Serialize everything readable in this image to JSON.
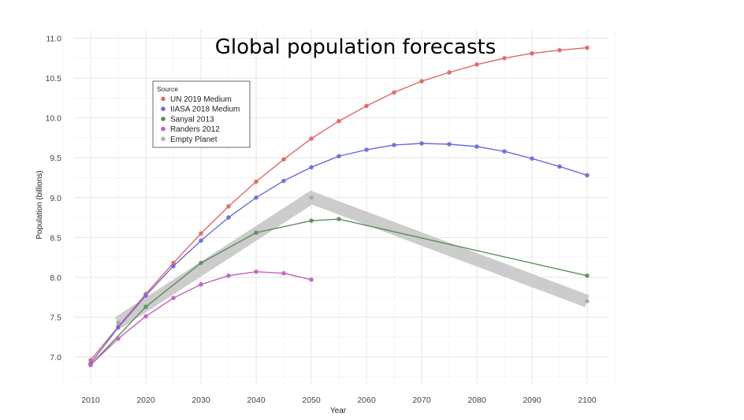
{
  "chart_data": {
    "type": "line",
    "title": "Global population forecasts",
    "xlabel": "Year",
    "ylabel": "Population (billions)",
    "xlim": [
      2010,
      2100
    ],
    "ylim": [
      6.5,
      11.1
    ],
    "x_ticks": [
      2010,
      2020,
      2030,
      2040,
      2050,
      2060,
      2070,
      2080,
      2090,
      2100
    ],
    "y_ticks": [
      7.0,
      7.5,
      8.0,
      8.5,
      9.0,
      9.5,
      10.0,
      10.5,
      11.0
    ],
    "grid": true,
    "legend": {
      "title": "Source",
      "position": "top-left"
    },
    "series": [
      {
        "name": "UN 2019 Medium",
        "color": "#e06666",
        "x": [
          2010,
          2015,
          2020,
          2025,
          2030,
          2035,
          2040,
          2045,
          2050,
          2055,
          2060,
          2065,
          2070,
          2075,
          2080,
          2085,
          2090,
          2095,
          2100
        ],
        "y": [
          6.96,
          7.38,
          7.79,
          8.18,
          8.55,
          8.89,
          9.2,
          9.48,
          9.74,
          9.96,
          10.15,
          10.32,
          10.46,
          10.57,
          10.67,
          10.75,
          10.81,
          10.85,
          10.88
        ]
      },
      {
        "name": "IIASA 2018 Medium",
        "color": "#6c6cd9",
        "x": [
          2010,
          2015,
          2020,
          2025,
          2030,
          2035,
          2040,
          2045,
          2050,
          2055,
          2060,
          2065,
          2070,
          2075,
          2080,
          2085,
          2090,
          2095,
          2100
        ],
        "y": [
          6.92,
          7.37,
          7.77,
          8.14,
          8.46,
          8.75,
          9.0,
          9.21,
          9.38,
          9.52,
          9.6,
          9.66,
          9.68,
          9.67,
          9.64,
          9.58,
          9.49,
          9.39,
          9.28
        ]
      },
      {
        "name": "Sanyal 2013",
        "color": "#5e8c5e",
        "x": [
          2010,
          2020,
          2030,
          2040,
          2050,
          2055,
          2100
        ],
        "y": [
          6.9,
          7.63,
          8.18,
          8.56,
          8.71,
          8.73,
          8.02
        ]
      },
      {
        "name": "Randers 2012",
        "color": "#c35ec3",
        "x": [
          2010,
          2015,
          2020,
          2025,
          2030,
          2035,
          2040,
          2045,
          2050
        ],
        "y": [
          6.9,
          7.23,
          7.51,
          7.74,
          7.91,
          8.02,
          8.07,
          8.05,
          7.97
        ]
      },
      {
        "name": "Empty Planet",
        "color": "#b3b3b3",
        "x": [
          2015,
          2050,
          2100
        ],
        "y": [
          7.43,
          9.0,
          7.7
        ]
      }
    ]
  }
}
